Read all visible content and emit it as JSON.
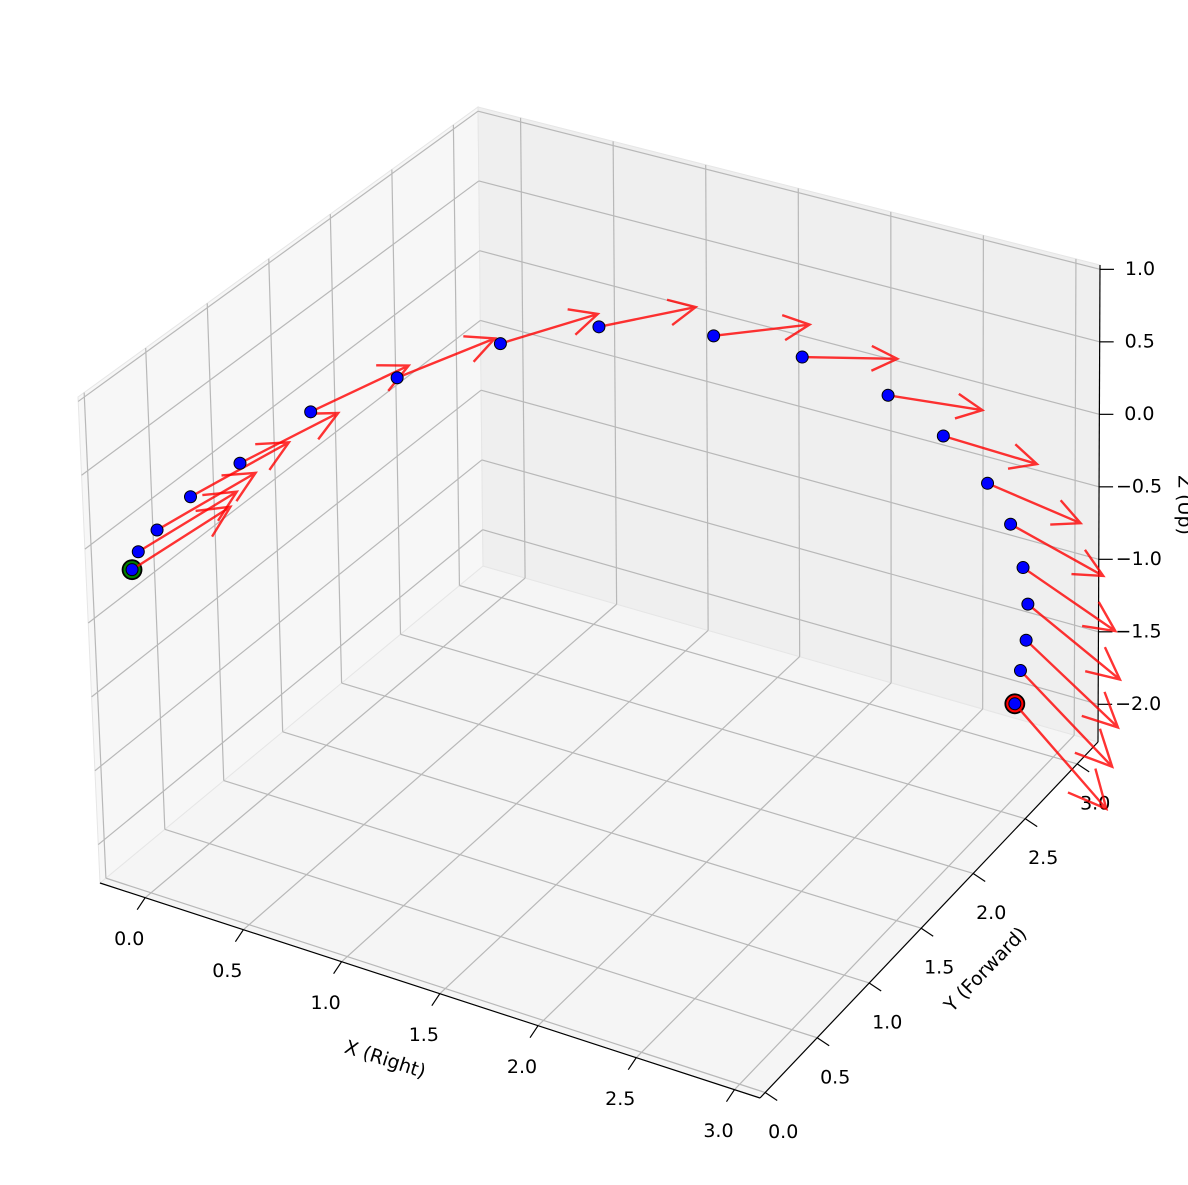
{
  "chart_data": {
    "type": "quiver3d",
    "xlabel": "X (Right)",
    "ylabel": "Y (Forward)",
    "zlabel": "Z (Up)",
    "xlim": [
      -0.23,
      3.13
    ],
    "ylim": [
      -0.05,
      3.2
    ],
    "zlim": [
      -2.26,
      1.03
    ],
    "xticks": [
      {
        "value": 0,
        "label": "0.0"
      },
      0.5,
      {
        "value": 1,
        "label": "1.0"
      },
      1.5,
      {
        "value": 2,
        "label": "2.0"
      },
      2.5,
      {
        "value": 3,
        "label": "3.0"
      }
    ],
    "yticks": [
      {
        "value": 0,
        "label": "0.0"
      },
      0.5,
      {
        "value": 1,
        "label": "1.0"
      },
      1.5,
      {
        "value": 2,
        "label": "2.0"
      },
      2.5,
      {
        "value": 3,
        "label": "3.0"
      }
    ],
    "zticks": [
      {
        "value": -2,
        "label": "−2.0"
      },
      {
        "value": -1.5,
        "label": "−1.5"
      },
      {
        "value": -1,
        "label": "−1.0"
      },
      {
        "value": -0.5,
        "label": "−0.5"
      },
      {
        "value": 0,
        "label": "0.0"
      },
      0.5,
      {
        "value": 1,
        "label": "1.0"
      }
    ],
    "grid": true,
    "points": {
      "color": "#0000ff",
      "start_color": "#008000",
      "end_color": "#ff0000",
      "x": [
        -0.03,
        -0.02,
        0.01,
        0.06,
        0.16,
        0.34,
        0.6,
        0.95,
        1.28,
        1.7,
        2.02,
        2.36,
        2.57,
        2.74,
        2.82,
        2.86,
        2.87,
        2.85,
        2.82,
        2.79
      ],
      "y": [
        0,
        0.04,
        0.15,
        0.35,
        0.6,
        0.9,
        1.2,
        1.5,
        1.8,
        2.1,
        2.35,
        2.55,
        2.7,
        2.82,
        2.9,
        2.95,
        2.98,
        3.0,
        3.0,
        3.0
      ],
      "z": [
        -0.09,
        0.01,
        0.1,
        0.22,
        0.33,
        0.56,
        0.7,
        0.87,
        0.91,
        0.8,
        0.6,
        0.32,
        0.01,
        -0.34,
        -0.65,
        -0.97,
        -1.24,
        -1.51,
        -1.73,
        -1.97
      ]
    },
    "arrows": {
      "color": "#ff0000",
      "alpha": 0.8,
      "u": [
        0.5,
        0.5,
        0.5,
        0.5,
        0.5,
        0.5,
        0.5,
        0.5,
        0.5,
        0.5,
        0.5,
        0.5,
        0.5,
        0.5,
        0.5,
        0.5,
        0.5,
        0.5,
        0.5,
        0.5
      ],
      "v": [
        0,
        0,
        0,
        0,
        0,
        0,
        0,
        0,
        0,
        0,
        0,
        0,
        0,
        0,
        0,
        0,
        0,
        0,
        0,
        0
      ],
      "w": [
        0.62,
        0.6,
        0.58,
        0.56,
        0.53,
        0.5,
        0.45,
        0.38,
        0.31,
        0.25,
        0.16,
        0.07,
        -0.02,
        -0.1,
        -0.18,
        -0.26,
        -0.34,
        -0.42,
        -0.48,
        -0.54
      ]
    }
  }
}
